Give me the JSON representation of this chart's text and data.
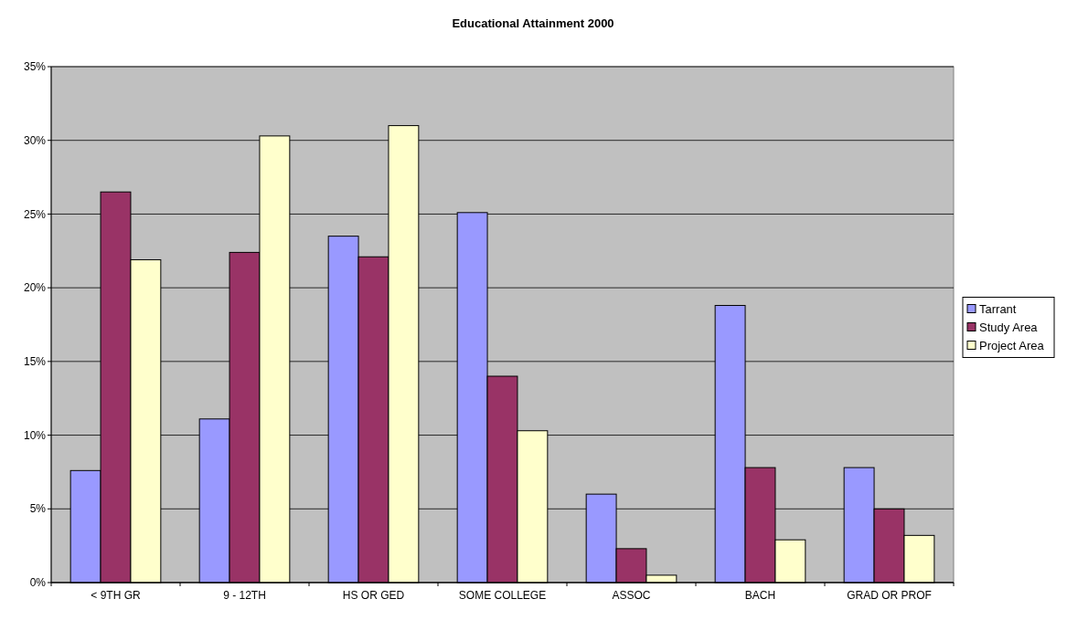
{
  "chart_data": {
    "type": "bar",
    "title": "Educational Attainment 2000",
    "categories": [
      "< 9TH GR",
      "9 - 12TH",
      "HS OR GED",
      "SOME COLLEGE",
      "ASSOC",
      "BACH",
      "GRAD OR PROF"
    ],
    "series": [
      {
        "name": "Tarrant",
        "color": "#9999ff",
        "values": [
          7.6,
          11.1,
          23.5,
          25.1,
          6.0,
          18.8,
          7.8
        ]
      },
      {
        "name": "Study Area",
        "color": "#993366",
        "values": [
          26.5,
          22.4,
          22.1,
          14.0,
          2.3,
          7.8,
          5.0
        ]
      },
      {
        "name": "Project Area",
        "color": "#ffffcc",
        "values": [
          21.9,
          30.3,
          31.0,
          10.3,
          0.5,
          2.9,
          3.2
        ]
      }
    ],
    "ylim": [
      0,
      35
    ],
    "yticks": [
      {
        "value": 0,
        "label": "0%"
      },
      {
        "value": 5,
        "label": "5%"
      },
      {
        "value": 10,
        "label": "10%"
      },
      {
        "value": 15,
        "label": "15%"
      },
      {
        "value": 20,
        "label": "20%"
      },
      {
        "value": 25,
        "label": "25%"
      },
      {
        "value": 30,
        "label": "30%"
      },
      {
        "value": 35,
        "label": "35%"
      }
    ],
    "grid": "y",
    "legend": "right"
  }
}
